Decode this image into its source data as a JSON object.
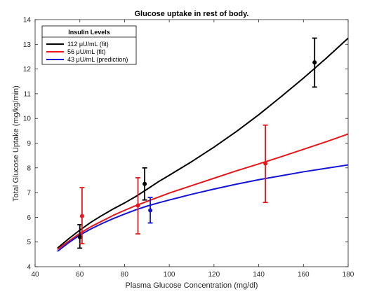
{
  "chart_data": {
    "type": "line",
    "title": "Glucose uptake in rest of body.",
    "xlabel": "Plasma Glucose Concentration (mg/dl)",
    "ylabel": "Total Glucose Uptake (mg/kg/min)",
    "xlim": [
      40,
      180
    ],
    "ylim": [
      4,
      14
    ],
    "xticks": [
      40,
      60,
      80,
      100,
      120,
      140,
      160,
      180
    ],
    "yticks": [
      4,
      5,
      6,
      7,
      8,
      9,
      10,
      11,
      12,
      13,
      14
    ],
    "grid": false,
    "legend": {
      "title": "Insulin Levels",
      "placement": "top-left",
      "entries": [
        "112 μU/mL (fit)",
        "56 μU/mL (fit)",
        "43 μU/mL (prediction)"
      ]
    },
    "series": [
      {
        "name": "112 μU/mL (fit)",
        "color": "#000000",
        "curve": {
          "x": [
            50,
            55,
            60,
            65,
            70,
            75,
            80,
            85,
            90,
            95,
            100,
            110,
            120,
            130,
            140,
            150,
            160,
            170,
            180
          ],
          "y": [
            4.75,
            5.13,
            5.48,
            5.8,
            6.08,
            6.34,
            6.58,
            6.84,
            7.13,
            7.43,
            7.7,
            8.25,
            8.84,
            9.47,
            10.15,
            10.88,
            11.63,
            12.42,
            13.25
          ]
        },
        "points": [
          {
            "x": 60,
            "y": 5.2,
            "low": 4.75,
            "high": 5.7
          },
          {
            "x": 89,
            "y": 7.35,
            "low": 6.7,
            "high": 8.0
          },
          {
            "x": 165,
            "y": 12.27,
            "low": 11.27,
            "high": 13.25
          }
        ]
      },
      {
        "name": "56 μU/mL (fit)",
        "color": "#e8161a",
        "curve": {
          "x": [
            50,
            55,
            60,
            65,
            70,
            75,
            80,
            85,
            90,
            95,
            100,
            110,
            120,
            130,
            140,
            150,
            160,
            170,
            180
          ],
          "y": [
            4.7,
            5.03,
            5.35,
            5.62,
            5.85,
            6.08,
            6.28,
            6.47,
            6.64,
            6.81,
            6.98,
            7.28,
            7.58,
            7.88,
            8.16,
            8.45,
            8.75,
            9.05,
            9.37
          ]
        },
        "points": [
          {
            "x": 61,
            "y": 6.05,
            "low": 4.93,
            "high": 7.2
          },
          {
            "x": 86,
            "y": 6.48,
            "low": 5.33,
            "high": 7.6
          },
          {
            "x": 143,
            "y": 8.18,
            "low": 6.6,
            "high": 9.73
          }
        ]
      },
      {
        "name": "43 μU/mL (prediction)",
        "color": "#1414d8",
        "curve": {
          "x": [
            50,
            55,
            60,
            65,
            70,
            75,
            80,
            85,
            90,
            95,
            100,
            110,
            120,
            130,
            140,
            150,
            160,
            170,
            180
          ],
          "y": [
            4.62,
            4.97,
            5.28,
            5.53,
            5.75,
            5.95,
            6.13,
            6.3,
            6.45,
            6.58,
            6.7,
            6.93,
            7.14,
            7.34,
            7.52,
            7.68,
            7.84,
            7.98,
            8.12
          ]
        },
        "points": [
          {
            "x": 91.5,
            "y": 6.28,
            "low": 5.77,
            "high": 6.8
          }
        ]
      }
    ]
  }
}
